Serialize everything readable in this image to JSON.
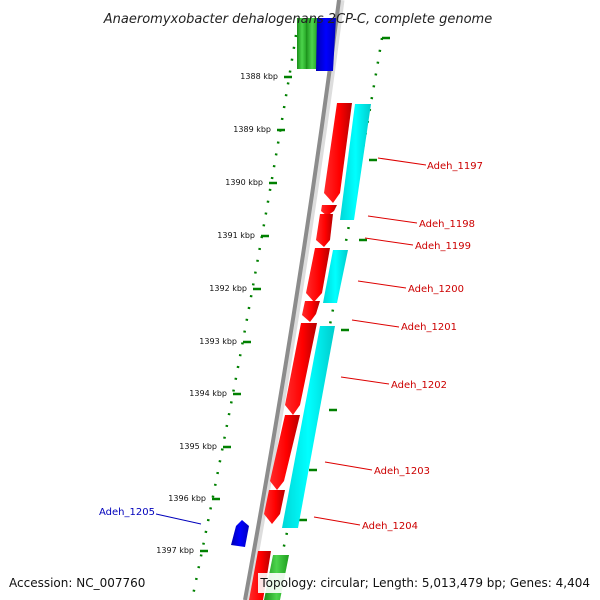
{
  "title": "Anaeromyxobacter dehalogenans 2CP-C, complete genome",
  "accession_text": "Accession: NC_007760",
  "summary_text": "Topology: circular; Length: 5,013,479 bp; Genes: 4,404",
  "colors": {
    "backbone": "#8c8c8c",
    "tick_dot": "#008000",
    "forward_gene": "#ff0000",
    "forward_label": "#cc0000",
    "cds_cyan": "#00ffff",
    "reverse_gene": "#0000ff",
    "reverse_label": "#0000bb",
    "green_feature": "#33cc33"
  },
  "ticks": [
    {
      "label": "1388 kbp"
    },
    {
      "label": "1389 kbp"
    },
    {
      "label": "1390 kbp"
    },
    {
      "label": "1391 kbp"
    },
    {
      "label": "1392 kbp"
    },
    {
      "label": "1393 kbp"
    },
    {
      "label": "1394 kbp"
    },
    {
      "label": "1395 kbp"
    },
    {
      "label": "1396 kbp"
    },
    {
      "label": "1397 kbp"
    }
  ],
  "genes_forward": [
    {
      "name": "Adeh_1197"
    },
    {
      "name": "Adeh_1198"
    },
    {
      "name": "Adeh_1199"
    },
    {
      "name": "Adeh_1200"
    },
    {
      "name": "Adeh_1201"
    },
    {
      "name": "Adeh_1202"
    },
    {
      "name": "Adeh_1203"
    },
    {
      "name": "Adeh_1204"
    }
  ],
  "genes_reverse": [
    {
      "name": "Adeh_1205"
    }
  ]
}
